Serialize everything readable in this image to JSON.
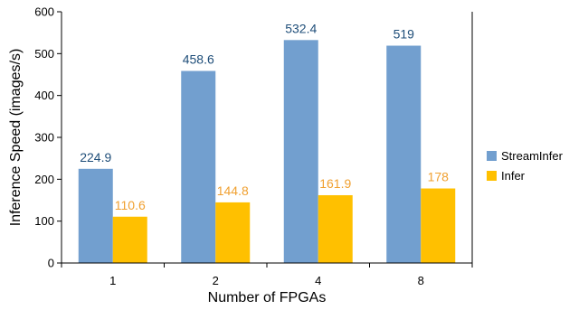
{
  "chart_data": {
    "type": "bar",
    "categories": [
      "1",
      "2",
      "4",
      "8"
    ],
    "series": [
      {
        "name": "StreamInfer",
        "values": [
          224.9,
          458.6,
          532.4,
          519
        ],
        "labels": [
          "224.9",
          "458.6",
          "532.4",
          "519"
        ],
        "color": "#729fcf",
        "label_color": "#1f4e79"
      },
      {
        "name": "Infer",
        "values": [
          110.6,
          144.8,
          161.9,
          178
        ],
        "labels": [
          "110.6",
          "144.8",
          "161.9",
          "178"
        ],
        "color": "#ffc000",
        "label_color": "#f0a030"
      }
    ],
    "xlabel": "Number of FPGAs",
    "ylabel": "Inference Speed (images/s)",
    "ylim": [
      0,
      600
    ],
    "yticks": [
      0,
      100,
      200,
      300,
      400,
      500,
      600
    ],
    "grid": false,
    "legend": "right"
  }
}
